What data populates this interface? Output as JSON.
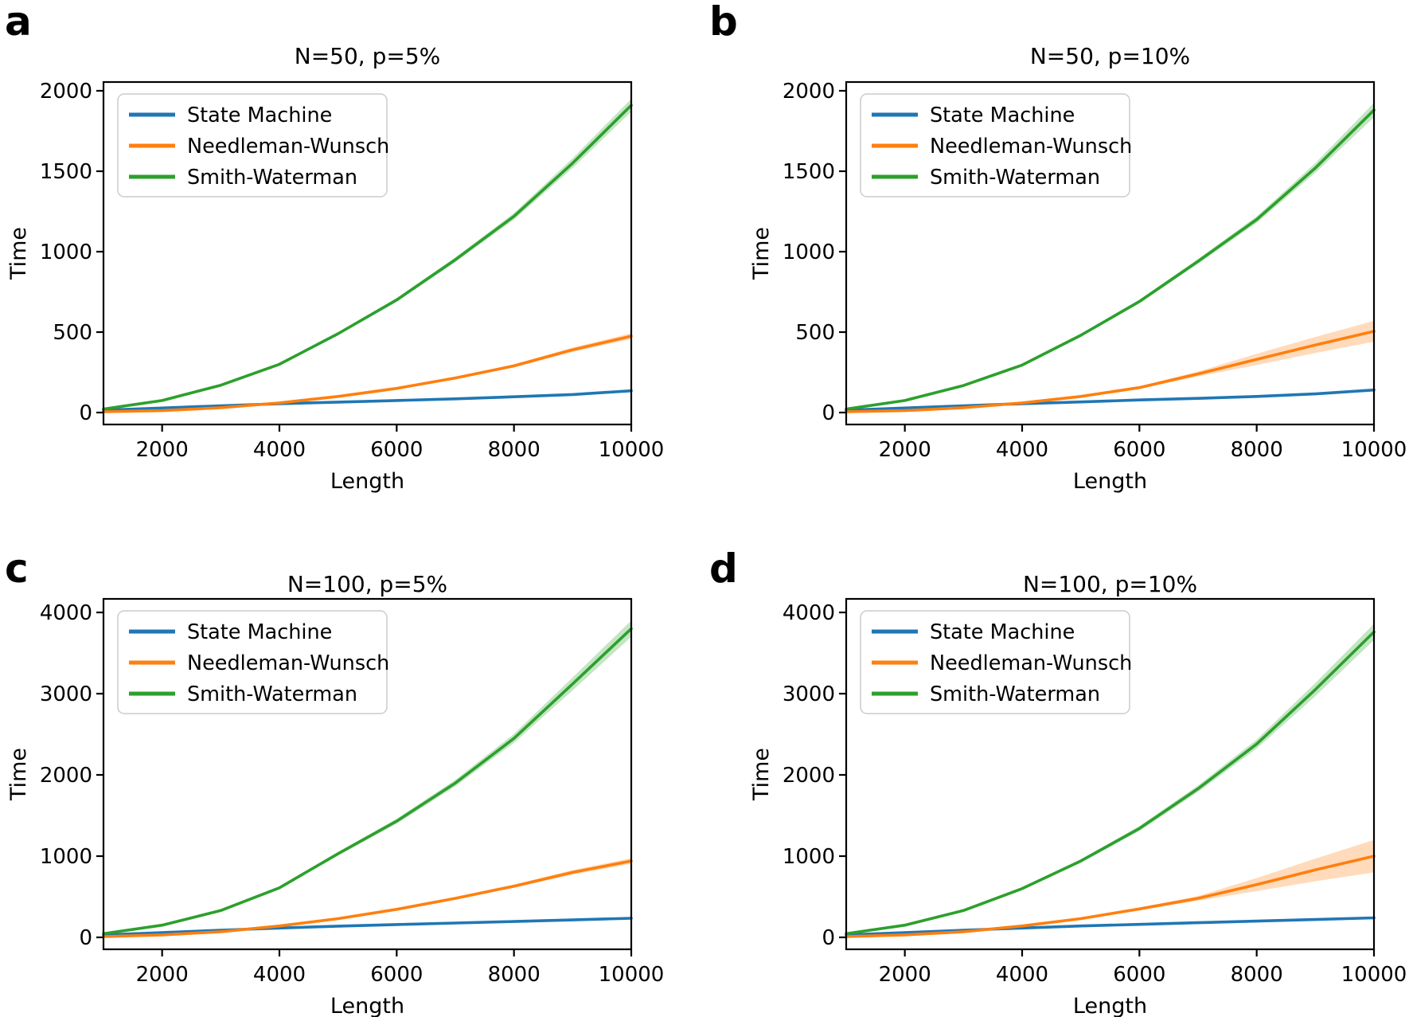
{
  "figure": {
    "xlabel": "Length",
    "ylabel": "Time",
    "x_ticks": [
      2000,
      4000,
      6000,
      8000,
      10000
    ],
    "legend_entries": [
      "State Machine",
      "Needleman-Wunsch",
      "Smith-Waterman"
    ],
    "colors": {
      "state_machine": "#1f77b4",
      "needleman_wunsch": "#ff7f0e",
      "smith_waterman": "#2ca02c",
      "axes": "#000000",
      "legend_border": "#cccccc"
    }
  },
  "chart_data": [
    {
      "panel_label": "a",
      "type": "line",
      "title": "N=50, p=5%",
      "xlabel": "Length",
      "ylabel": "Time",
      "x": [
        1000,
        2000,
        3000,
        4000,
        5000,
        6000,
        7000,
        8000,
        9000,
        10000
      ],
      "xlim": [
        1000,
        10000
      ],
      "ylim": [
        0,
        2000
      ],
      "xticks": [
        2000,
        4000,
        6000,
        8000,
        10000
      ],
      "yticks": [
        0,
        500,
        1000,
        1500,
        2000
      ],
      "grid": false,
      "legend_position": "upper left",
      "series": [
        {
          "name": "State Machine",
          "color": "#1f77b4",
          "values": [
            15,
            28,
            42,
            55,
            65,
            75,
            85,
            98,
            112,
            135
          ],
          "band": [
            3,
            3,
            3,
            4,
            4,
            4,
            5,
            5,
            6,
            8
          ]
        },
        {
          "name": "Needleman-Wunsch",
          "color": "#ff7f0e",
          "values": [
            5,
            12,
            30,
            60,
            100,
            150,
            215,
            290,
            390,
            475
          ],
          "band": [
            2,
            2,
            3,
            4,
            5,
            6,
            8,
            10,
            14,
            18
          ]
        },
        {
          "name": "Smith-Waterman",
          "color": "#2ca02c",
          "values": [
            22,
            75,
            170,
            300,
            490,
            700,
            950,
            1220,
            1550,
            1910
          ],
          "band": [
            3,
            4,
            6,
            8,
            10,
            12,
            15,
            20,
            30,
            40
          ]
        }
      ]
    },
    {
      "panel_label": "b",
      "type": "line",
      "title": "N=50, p=10%",
      "xlabel": "Length",
      "ylabel": "Time",
      "x": [
        1000,
        2000,
        3000,
        4000,
        5000,
        6000,
        7000,
        8000,
        9000,
        10000
      ],
      "xlim": [
        1000,
        10000
      ],
      "ylim": [
        0,
        2000
      ],
      "xticks": [
        2000,
        4000,
        6000,
        8000,
        10000
      ],
      "yticks": [
        0,
        500,
        1000,
        1500,
        2000
      ],
      "grid": false,
      "legend_position": "upper left",
      "series": [
        {
          "name": "State Machine",
          "color": "#1f77b4",
          "values": [
            15,
            28,
            42,
            55,
            66,
            78,
            88,
            100,
            116,
            140
          ],
          "band": [
            3,
            3,
            3,
            4,
            4,
            4,
            5,
            5,
            6,
            8
          ]
        },
        {
          "name": "Needleman-Wunsch",
          "color": "#ff7f0e",
          "values": [
            5,
            12,
            30,
            60,
            100,
            155,
            240,
            330,
            420,
            505
          ],
          "band": [
            2,
            2,
            3,
            4,
            5,
            8,
            15,
            35,
            50,
            65
          ]
        },
        {
          "name": "Smith-Waterman",
          "color": "#2ca02c",
          "values": [
            22,
            75,
            168,
            295,
            480,
            690,
            940,
            1200,
            1520,
            1880
          ],
          "band": [
            3,
            4,
            6,
            8,
            10,
            12,
            15,
            20,
            30,
            45
          ]
        }
      ]
    },
    {
      "panel_label": "c",
      "type": "line",
      "title": "N=100, p=5%",
      "xlabel": "Length",
      "ylabel": "Time",
      "x": [
        1000,
        2000,
        3000,
        4000,
        5000,
        6000,
        7000,
        8000,
        9000,
        10000
      ],
      "xlim": [
        1000,
        10000
      ],
      "ylim": [
        0,
        4000
      ],
      "xticks": [
        2000,
        4000,
        6000,
        8000,
        10000
      ],
      "yticks": [
        0,
        1000,
        2000,
        3000,
        4000
      ],
      "grid": false,
      "legend_position": "upper left",
      "series": [
        {
          "name": "State Machine",
          "color": "#1f77b4",
          "values": [
            30,
            58,
            88,
            115,
            138,
            158,
            176,
            195,
            215,
            235
          ],
          "band": [
            4,
            4,
            5,
            5,
            6,
            6,
            7,
            7,
            8,
            10
          ]
        },
        {
          "name": "Needleman-Wunsch",
          "color": "#ff7f0e",
          "values": [
            10,
            30,
            70,
            140,
            230,
            345,
            480,
            630,
            800,
            940
          ],
          "band": [
            3,
            4,
            5,
            7,
            9,
            12,
            16,
            20,
            28,
            35
          ]
        },
        {
          "name": "Smith-Waterman",
          "color": "#2ca02c",
          "values": [
            45,
            150,
            330,
            610,
            1030,
            1430,
            1900,
            2450,
            3120,
            3800
          ],
          "band": [
            5,
            8,
            12,
            16,
            22,
            30,
            40,
            55,
            80,
            100
          ]
        }
      ]
    },
    {
      "panel_label": "d",
      "type": "line",
      "title": "N=100, p=10%",
      "xlabel": "Length",
      "ylabel": "Time",
      "x": [
        1000,
        2000,
        3000,
        4000,
        5000,
        6000,
        7000,
        8000,
        9000,
        10000
      ],
      "xlim": [
        1000,
        10000
      ],
      "ylim": [
        0,
        4000
      ],
      "xticks": [
        2000,
        4000,
        6000,
        8000,
        10000
      ],
      "yticks": [
        0,
        1000,
        2000,
        3000,
        4000
      ],
      "grid": false,
      "legend_position": "upper left",
      "series": [
        {
          "name": "State Machine",
          "color": "#1f77b4",
          "values": [
            30,
            58,
            88,
            115,
            140,
            160,
            180,
            200,
            220,
            240
          ],
          "band": [
            4,
            4,
            5,
            5,
            6,
            6,
            7,
            7,
            8,
            10
          ]
        },
        {
          "name": "Needleman-Wunsch",
          "color": "#ff7f0e",
          "values": [
            10,
            30,
            70,
            140,
            230,
            350,
            480,
            650,
            830,
            1000
          ],
          "band": [
            3,
            4,
            6,
            8,
            10,
            15,
            30,
            80,
            140,
            200
          ]
        },
        {
          "name": "Smith-Waterman",
          "color": "#2ca02c",
          "values": [
            45,
            150,
            330,
            600,
            940,
            1340,
            1830,
            2380,
            3050,
            3760
          ],
          "band": [
            5,
            8,
            12,
            16,
            22,
            30,
            40,
            55,
            80,
            100
          ]
        }
      ]
    }
  ]
}
